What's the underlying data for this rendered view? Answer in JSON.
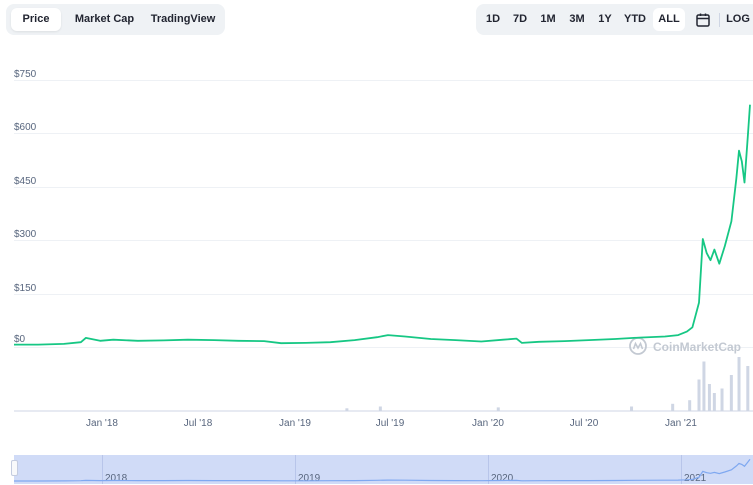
{
  "tabs": {
    "items": [
      {
        "label": "Price",
        "active": true
      },
      {
        "label": "Market Cap",
        "active": false
      },
      {
        "label": "TradingView",
        "active": false
      }
    ]
  },
  "ranges": {
    "items": [
      {
        "label": "1D",
        "active": false
      },
      {
        "label": "7D",
        "active": false
      },
      {
        "label": "1M",
        "active": false
      },
      {
        "label": "3M",
        "active": false
      },
      {
        "label": "1Y",
        "active": false
      },
      {
        "label": "YTD",
        "active": false
      },
      {
        "label": "ALL",
        "active": true
      }
    ],
    "calendar_icon": "calendar-icon",
    "log_label": "LOG"
  },
  "watermark": {
    "text": "CoinMarketCap",
    "icon": "coinmarketcap-logo-icon"
  },
  "colors": {
    "line": "#16c784",
    "volume": "#cfd6e4",
    "navigator": "#d0dbf7",
    "navigator_line": "#7fa8f0"
  },
  "navigator": {
    "year_labels": [
      "2018",
      "2019",
      "2020",
      "2021"
    ]
  },
  "chart_data": {
    "type": "line",
    "x_tick_labels": [
      "Jan '18",
      "Jul '18",
      "Jan '19",
      "Jul '19",
      "Jan '20",
      "Jul '20",
      "Jan '21"
    ],
    "y_tick_labels": [
      "$0",
      "$150",
      "$300",
      "$450",
      "$600",
      "$750"
    ],
    "ylim": [
      0,
      750
    ],
    "grid": true,
    "series": [
      {
        "x": [
          "2017-09-01",
          "2017-10-15",
          "2017-12-01",
          "2018-01-01",
          "2018-01-10",
          "2018-02-05",
          "2018-03-01",
          "2018-04-15",
          "2018-06-01",
          "2018-07-15",
          "2018-09-01",
          "2018-10-15",
          "2018-12-01",
          "2019-01-01",
          "2019-02-15",
          "2019-04-01",
          "2019-05-15",
          "2019-06-25",
          "2019-07-15",
          "2019-08-15",
          "2019-10-01",
          "2019-11-15",
          "2020-01-01",
          "2020-02-10",
          "2020-03-05",
          "2020-03-15",
          "2020-04-15",
          "2020-06-01",
          "2020-07-15",
          "2020-09-01",
          "2020-10-15",
          "2020-12-01",
          "2020-12-25",
          "2021-01-10",
          "2021-01-20",
          "2021-02-01",
          "2021-02-08",
          "2021-02-15",
          "2021-02-22",
          "2021-03-01",
          "2021-03-10",
          "2021-03-20",
          "2021-04-01",
          "2021-04-10",
          "2021-04-15",
          "2021-04-20",
          "2021-04-25",
          "2021-05-01",
          "2021-05-05"
        ],
        "y": [
          1,
          1,
          3,
          8,
          20,
          12,
          15,
          12,
          13,
          15,
          14,
          12,
          11,
          5,
          6,
          8,
          14,
          22,
          28,
          24,
          17,
          14,
          10,
          15,
          18,
          6,
          9,
          11,
          14,
          17,
          21,
          24,
          28,
          38,
          50,
          120,
          300,
          260,
          240,
          270,
          230,
          280,
          350,
          470,
          550,
          520,
          460,
          590,
          680
        ]
      }
    ],
    "volume": {
      "x": [
        "2019-05-01",
        "2019-07-01",
        "2020-02-01",
        "2020-10-01",
        "2020-12-15",
        "2021-01-15",
        "2021-02-01",
        "2021-02-10",
        "2021-02-20",
        "2021-03-01",
        "2021-03-15",
        "2021-04-01",
        "2021-04-15",
        "2021-05-01"
      ],
      "relative_height": [
        0.03,
        0.05,
        0.04,
        0.05,
        0.08,
        0.12,
        0.35,
        0.55,
        0.3,
        0.2,
        0.25,
        0.4,
        0.6,
        0.5
      ]
    }
  }
}
